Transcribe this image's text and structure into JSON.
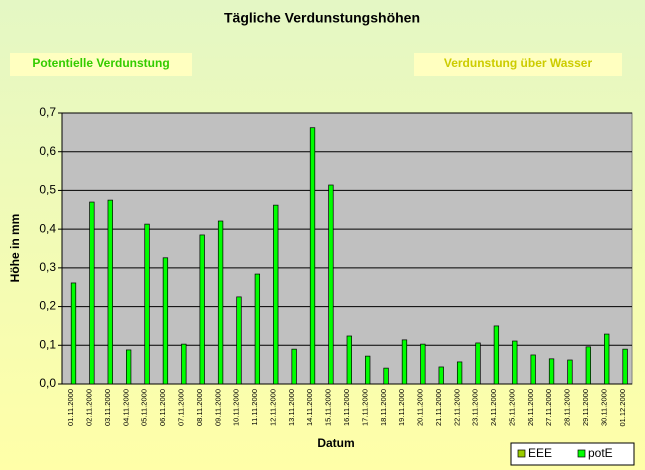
{
  "chart_data": {
    "type": "bar",
    "title": "Tägliche Verdunstungshöhen",
    "boxes": [
      "Potentielle Verdunstung",
      "Verdunstung über Wasser"
    ],
    "ylabel": "Höhe in mm",
    "xlabel": "Datum",
    "categories": [
      "01.11.2000",
      "02.11.2000",
      "03.11.2000",
      "04.11.2000",
      "05.11.2000",
      "06.11.2000",
      "07.11.2000",
      "08.11.2000",
      "09.11.2000",
      "10.11.2000",
      "11.11.2000",
      "12.11.2000",
      "13.11.2000",
      "14.11.2000",
      "15.11.2000",
      "16.11.2000",
      "17.11.2000",
      "18.11.2000",
      "19.11.2000",
      "20.11.2000",
      "21.11.2000",
      "22.11.2000",
      "23.11.2000",
      "24.11.2000",
      "25.11.2000",
      "26.11.2000",
      "27.11.2000",
      "28.11.2000",
      "29.11.2000",
      "30.11.2000",
      "01.12.2000"
    ],
    "series": [
      {
        "name": "EEE",
        "color": "#99cc00",
        "values": [
          null,
          null,
          null,
          null,
          null,
          null,
          null,
          null,
          null,
          null,
          null,
          null,
          null,
          null,
          null,
          null,
          null,
          null,
          null,
          null,
          null,
          null,
          null,
          null,
          null,
          null,
          null,
          null,
          null,
          null,
          null
        ]
      },
      {
        "name": "potE",
        "color": "#00ff00",
        "values": [
          0.261,
          0.47,
          0.475,
          0.088,
          0.413,
          0.326,
          0.103,
          0.385,
          0.421,
          0.225,
          0.284,
          0.462,
          0.09,
          0.662,
          0.514,
          0.124,
          0.072,
          0.041,
          0.114,
          0.103,
          0.044,
          0.057,
          0.106,
          0.15,
          0.111,
          0.075,
          0.065,
          0.062,
          0.096,
          0.129,
          0.09
        ]
      }
    ],
    "ylim": [
      0,
      0.7
    ],
    "yticks": [
      {
        "value": 0,
        "label": "0,0"
      },
      {
        "value": 0.1,
        "label": "0,1"
      },
      {
        "value": 0.2,
        "label": "0,2"
      },
      {
        "value": 0.3,
        "label": "0,3"
      },
      {
        "value": 0.4,
        "label": "0,4"
      },
      {
        "value": 0.5,
        "label": "0,5"
      },
      {
        "value": 0.6,
        "label": "0,6"
      },
      {
        "value": 0.7,
        "label": "0,7"
      }
    ],
    "grid": true,
    "legend": "bottom-right"
  }
}
